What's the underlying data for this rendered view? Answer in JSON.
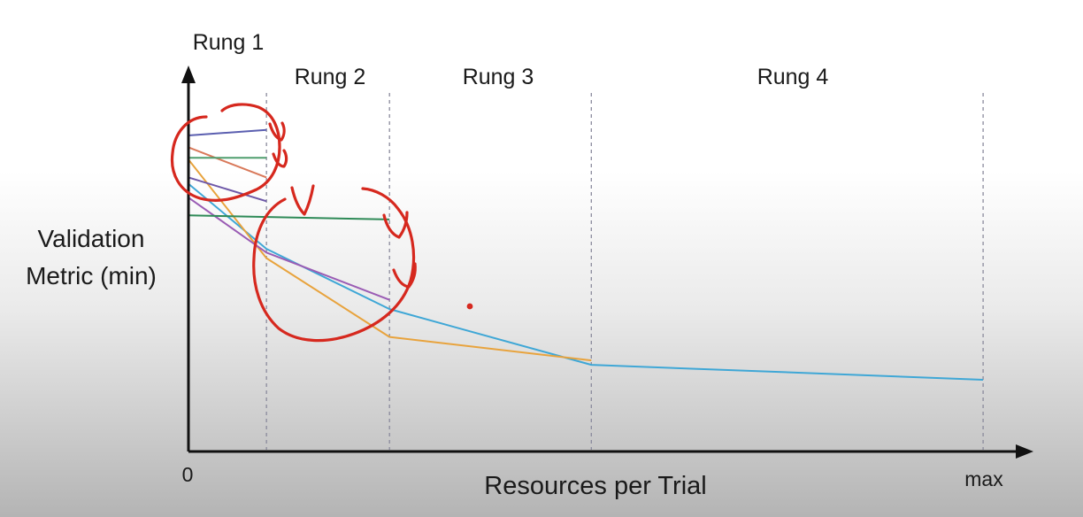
{
  "chart_data": {
    "type": "line",
    "xlabel": "Resources per Trial",
    "ylabel": [
      "Validation",
      "Metric (min)"
    ],
    "x_ticks": [
      "0",
      "max"
    ],
    "x_range": [
      0,
      1
    ],
    "y_range": [
      0,
      1
    ],
    "rungs": [
      {
        "label": "Rung 1",
        "boundary": 0.0
      },
      {
        "label": "Rung 2",
        "boundary": 0.0972
      },
      {
        "label": "Rung 3",
        "boundary": 0.2505
      },
      {
        "label": "Rung 4",
        "boundary": 0.502
      },
      {
        "label": "",
        "boundary": 0.9902
      }
    ],
    "series": [
      {
        "color": "#3fa7d6",
        "points": [
          [
            0,
            0.72
          ],
          [
            0.0972,
            0.545
          ],
          [
            0.2505,
            0.383
          ],
          [
            0.502,
            0.233
          ],
          [
            0.9902,
            0.193
          ]
        ]
      },
      {
        "color": "#e8a33d",
        "points": [
          [
            0,
            0.785
          ],
          [
            0.0972,
            0.52
          ],
          [
            0.2505,
            0.308
          ],
          [
            0.502,
            0.245
          ]
        ]
      },
      {
        "color": "#9a5cb4",
        "points": [
          [
            0,
            0.683
          ],
          [
            0.0972,
            0.535
          ],
          [
            0.2505,
            0.408
          ]
        ]
      },
      {
        "color": "#2e8a57",
        "points": [
          [
            0,
            0.635
          ],
          [
            0.2505,
            0.624
          ]
        ]
      },
      {
        "color": "#5b5fb0",
        "points": [
          [
            0,
            0.85
          ],
          [
            0.0972,
            0.865
          ]
        ]
      },
      {
        "color": "#d9795a",
        "points": [
          [
            0,
            0.818
          ],
          [
            0.0972,
            0.737
          ]
        ]
      },
      {
        "color": "#4f9e6e",
        "points": [
          [
            0,
            0.79
          ],
          [
            0.0972,
            0.79
          ]
        ]
      },
      {
        "color": "#6e58a8",
        "points": [
          [
            0,
            0.737
          ],
          [
            0.0972,
            0.673
          ]
        ]
      }
    ],
    "annotation_color": "#d6281e",
    "grid": false
  }
}
